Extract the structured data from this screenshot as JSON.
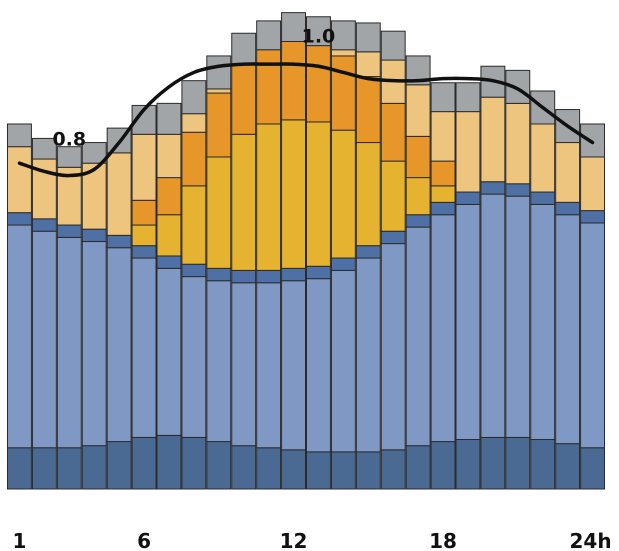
{
  "chart_data": {
    "type": "bar",
    "stacked": true,
    "title": "",
    "xlabel": "",
    "ylabel": "",
    "categories": [
      "1",
      "2",
      "3",
      "4",
      "5",
      "6",
      "7",
      "8",
      "9",
      "10",
      "11",
      "12",
      "13",
      "14",
      "15",
      "16",
      "17",
      "18",
      "19",
      "20",
      "21",
      "22",
      "23",
      "24"
    ],
    "x_tick_labels": [
      "1",
      "6",
      "12",
      "18",
      "24h"
    ],
    "x_tick_positions": [
      1,
      6,
      12,
      18,
      24
    ],
    "ylim": [
      0,
      1.125
    ],
    "grid": false,
    "legend": "none",
    "series": [
      {
        "color": "#4a6a93",
        "values": [
          0.1,
          0.1,
          0.1,
          0.105,
          0.115,
          0.125,
          0.13,
          0.125,
          0.115,
          0.105,
          0.1,
          0.095,
          0.09,
          0.09,
          0.09,
          0.095,
          0.105,
          0.115,
          0.12,
          0.125,
          0.125,
          0.12,
          0.11,
          0.1
        ]
      },
      {
        "color": "#8099c4",
        "values": [
          0.54,
          0.525,
          0.51,
          0.495,
          0.47,
          0.435,
          0.405,
          0.39,
          0.39,
          0.395,
          0.4,
          0.41,
          0.42,
          0.44,
          0.47,
          0.5,
          0.53,
          0.55,
          0.57,
          0.59,
          0.585,
          0.57,
          0.555,
          0.545
        ]
      },
      {
        "color": "#4f70a4",
        "values": [
          0.03,
          0.03,
          0.03,
          0.03,
          0.03,
          0.03,
          0.03,
          0.03,
          0.03,
          0.03,
          0.03,
          0.03,
          0.03,
          0.03,
          0.03,
          0.03,
          0.03,
          0.03,
          0.03,
          0.03,
          0.03,
          0.03,
          0.03,
          0.03
        ]
      },
      {
        "color": "#e6b330",
        "values": [
          0.0,
          0.0,
          0.0,
          0.0,
          0.0,
          0.05,
          0.1,
          0.19,
          0.27,
          0.33,
          0.355,
          0.36,
          0.35,
          0.31,
          0.25,
          0.17,
          0.09,
          0.04,
          0.0,
          0.0,
          0.0,
          0.0,
          0.0,
          0.0
        ]
      },
      {
        "color": "#e7962a",
        "values": [
          0.0,
          0.0,
          0.0,
          0.0,
          0.0,
          0.06,
          0.09,
          0.13,
          0.155,
          0.17,
          0.18,
          0.19,
          0.185,
          0.18,
          0.16,
          0.14,
          0.1,
          0.06,
          0.0,
          0.0,
          0.0,
          0.0,
          0.0,
          0.0
        ]
      },
      {
        "color": "#eec57f",
        "values": [
          0.16,
          0.145,
          0.14,
          0.16,
          0.2,
          0.16,
          0.105,
          0.045,
          0.01,
          0.0,
          0.0,
          0.0,
          0.0,
          0.015,
          0.06,
          0.105,
          0.125,
          0.12,
          0.195,
          0.205,
          0.195,
          0.165,
          0.145,
          0.13
        ]
      },
      {
        "color": "#a1a5a8",
        "values": [
          0.055,
          0.05,
          0.05,
          0.05,
          0.06,
          0.07,
          0.075,
          0.08,
          0.08,
          0.075,
          0.07,
          0.07,
          0.07,
          0.07,
          0.07,
          0.07,
          0.07,
          0.07,
          0.07,
          0.075,
          0.08,
          0.08,
          0.08,
          0.08
        ]
      }
    ],
    "line": {
      "color": "#111111",
      "values": [
        0.79,
        0.77,
        0.76,
        0.775,
        0.84,
        0.92,
        0.975,
        1.01,
        1.025,
        1.03,
        1.03,
        1.03,
        1.025,
        1.01,
        0.995,
        0.99,
        0.99,
        0.995,
        0.995,
        0.99,
        0.97,
        0.925,
        0.88,
        0.84
      ]
    },
    "annotations": [
      {
        "text": "0.8",
        "x": 3,
        "y": 0.85
      },
      {
        "text": "1.0",
        "x": 13,
        "y": 1.1
      }
    ]
  }
}
